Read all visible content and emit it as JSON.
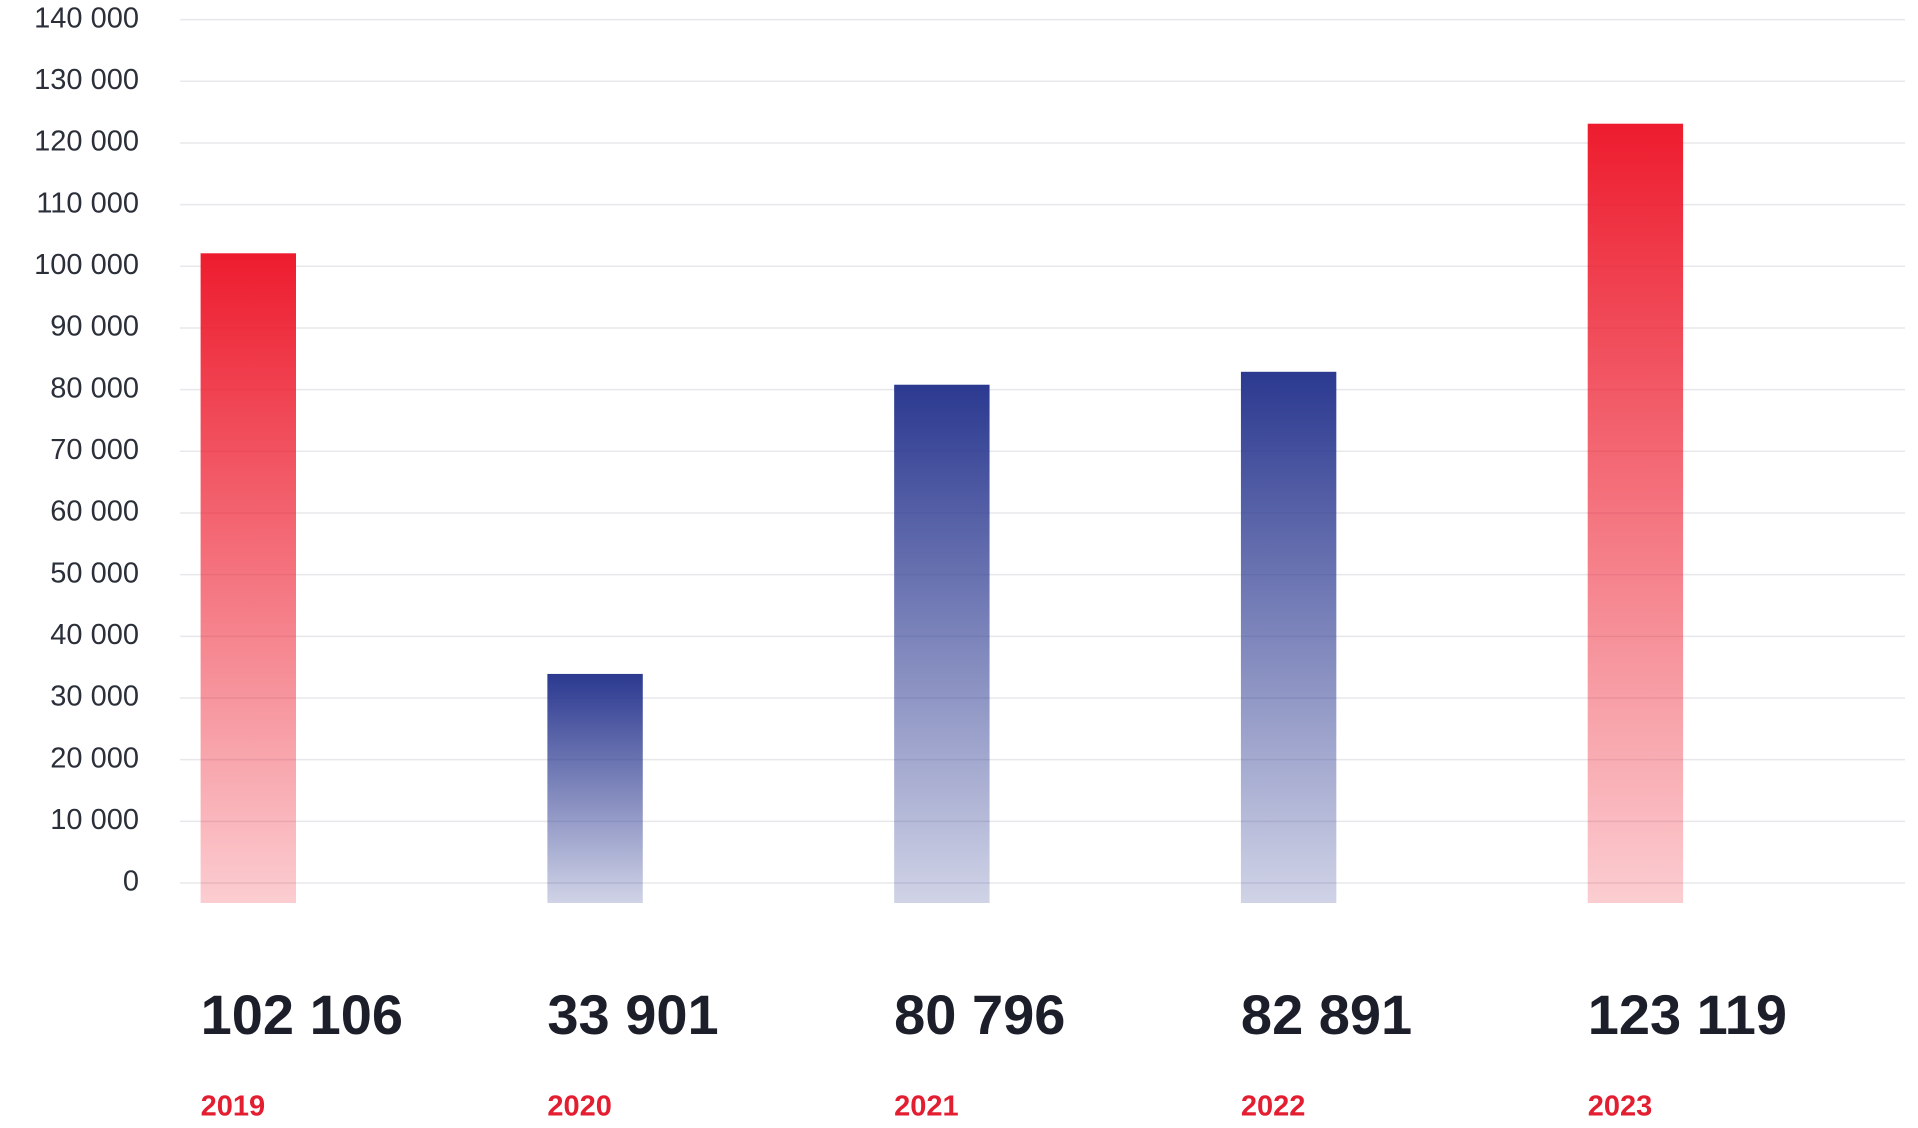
{
  "chart_data": {
    "type": "bar",
    "categories": [
      "2019",
      "2020",
      "2021",
      "2022",
      "2023"
    ],
    "values": [
      102106,
      33901,
      80796,
      82891,
      123119
    ],
    "value_labels": [
      "102 106",
      "33 901",
      "80 796",
      "82 891",
      "123 119"
    ],
    "colors": [
      "#ed1c2e",
      "#2b3990",
      "#2b3990",
      "#2b3990",
      "#ed1c2e"
    ],
    "category_color": "#e31e30",
    "ylim": [
      0,
      140000
    ],
    "yticks": [
      0,
      {
        "value": 10000,
        "label": "10 000"
      },
      {
        "value": 20000,
        "label": "20 000"
      },
      {
        "value": 30000,
        "label": "30 000"
      },
      {
        "value": 40000,
        "label": "40 000"
      },
      {
        "value": 50000,
        "label": "50 000"
      },
      {
        "value": 60000,
        "label": "60 000"
      },
      {
        "value": 70000,
        "label": "70 000"
      },
      {
        "value": 80000,
        "label": "80 000"
      },
      {
        "value": 90000,
        "label": "90 000"
      },
      {
        "value": 100000,
        "label": "100 000"
      },
      {
        "value": 110000,
        "label": "110 000"
      },
      {
        "value": 120000,
        "label": "120 000"
      },
      {
        "value": 130000,
        "label": "130 000"
      },
      {
        "value": 140000,
        "label": "140 000"
      }
    ],
    "grid": true
  }
}
